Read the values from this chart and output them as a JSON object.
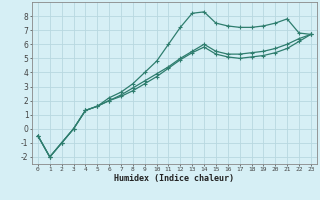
{
  "xlabel": "Humidex (Indice chaleur)",
  "background_color": "#d6eff5",
  "grid_color": "#b8d8e0",
  "line_color": "#2e7d6e",
  "x_values": [
    0,
    1,
    2,
    3,
    4,
    5,
    6,
    7,
    8,
    9,
    10,
    11,
    12,
    13,
    14,
    15,
    16,
    17,
    18,
    19,
    20,
    21,
    22,
    23
  ],
  "line1_y": [
    -0.5,
    -2.0,
    -1.0,
    0.0,
    1.3,
    1.6,
    2.2,
    2.6,
    3.2,
    4.0,
    4.8,
    6.0,
    7.2,
    8.2,
    8.3,
    7.5,
    7.3,
    7.2,
    7.2,
    7.3,
    7.5,
    7.8,
    6.8,
    6.7
  ],
  "line2_y": [
    -0.5,
    -2.0,
    -1.0,
    0.0,
    1.3,
    1.6,
    2.0,
    2.4,
    2.9,
    3.4,
    3.9,
    4.4,
    5.0,
    5.5,
    6.0,
    5.5,
    5.3,
    5.3,
    5.4,
    5.5,
    5.7,
    6.0,
    6.4,
    6.7
  ],
  "line3_y": [
    -0.5,
    -2.0,
    -1.0,
    0.0,
    1.3,
    1.6,
    2.0,
    2.3,
    2.7,
    3.2,
    3.7,
    4.3,
    4.9,
    5.4,
    5.8,
    5.3,
    5.1,
    5.0,
    5.1,
    5.2,
    5.4,
    5.7,
    6.2,
    6.7
  ],
  "ylim": [
    -2.5,
    9.0
  ],
  "xlim": [
    -0.5,
    23.5
  ],
  "yticks": [
    -2,
    -1,
    0,
    1,
    2,
    3,
    4,
    5,
    6,
    7,
    8
  ],
  "xticks": [
    0,
    1,
    2,
    3,
    4,
    5,
    6,
    7,
    8,
    9,
    10,
    11,
    12,
    13,
    14,
    15,
    16,
    17,
    18,
    19,
    20,
    21,
    22,
    23
  ],
  "marker": "+"
}
